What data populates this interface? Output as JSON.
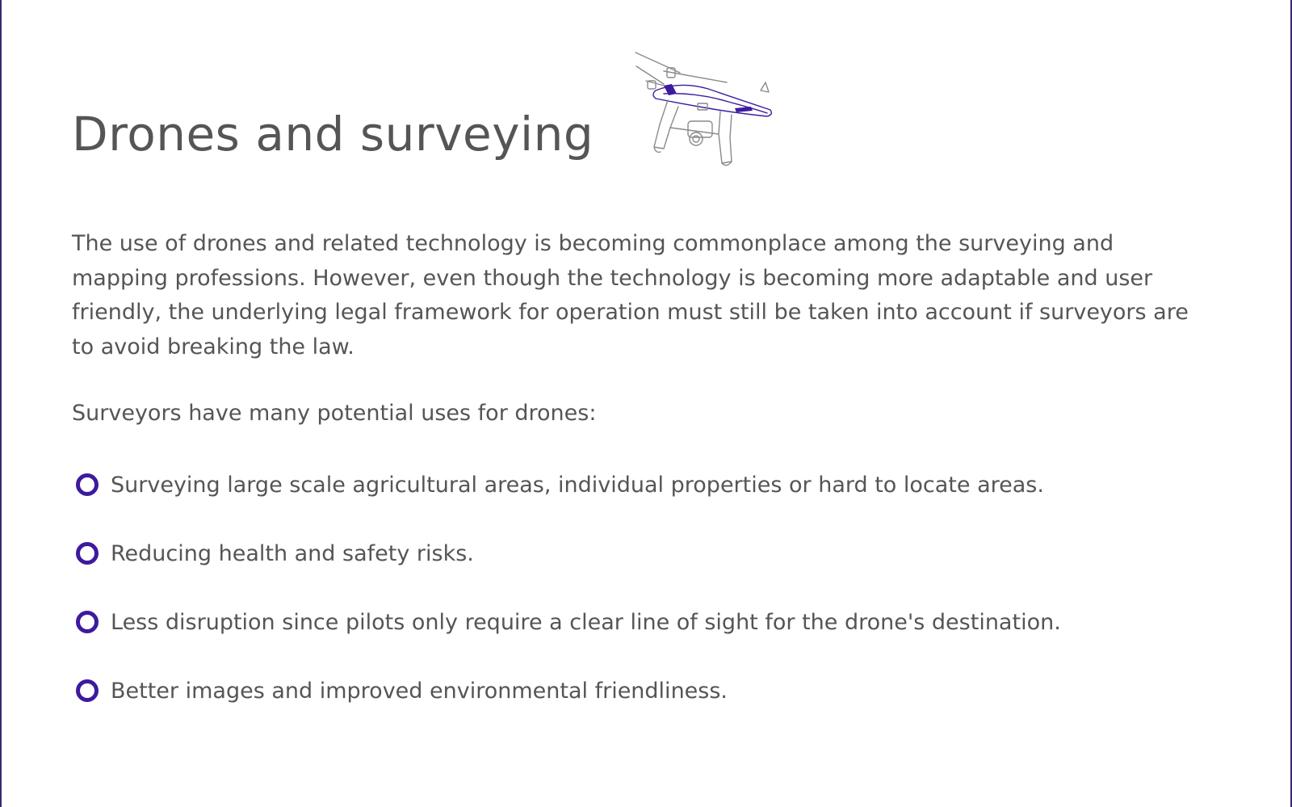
{
  "slide": {
    "title": "Drones and surveying",
    "intro": "The use of drones and related technology is becoming commonplace among the surveying and mapping professions. However, even though the technology is becoming more adaptable and user friendly, the underlying legal framework for operation must still be taken into account if surveyors are to avoid breaking the law.",
    "uses_heading": "Surveyors have many potential uses for drones:",
    "bullets": [
      "Surveying large scale agricultural areas, individual properties or hard to locate areas.",
      "Reducing health and safety risks.",
      "Less disruption since pilots only require a clear line of sight for the drone's destination.",
      "Better images and improved environmental friendliness."
    ],
    "illustration_icon": "drone-icon",
    "bullet_icon": "ring-bullet-icon"
  },
  "colors": {
    "accent": "#3d1a9e",
    "text": "#555555",
    "border": "#3a2a6e",
    "background": "#ffffff"
  }
}
